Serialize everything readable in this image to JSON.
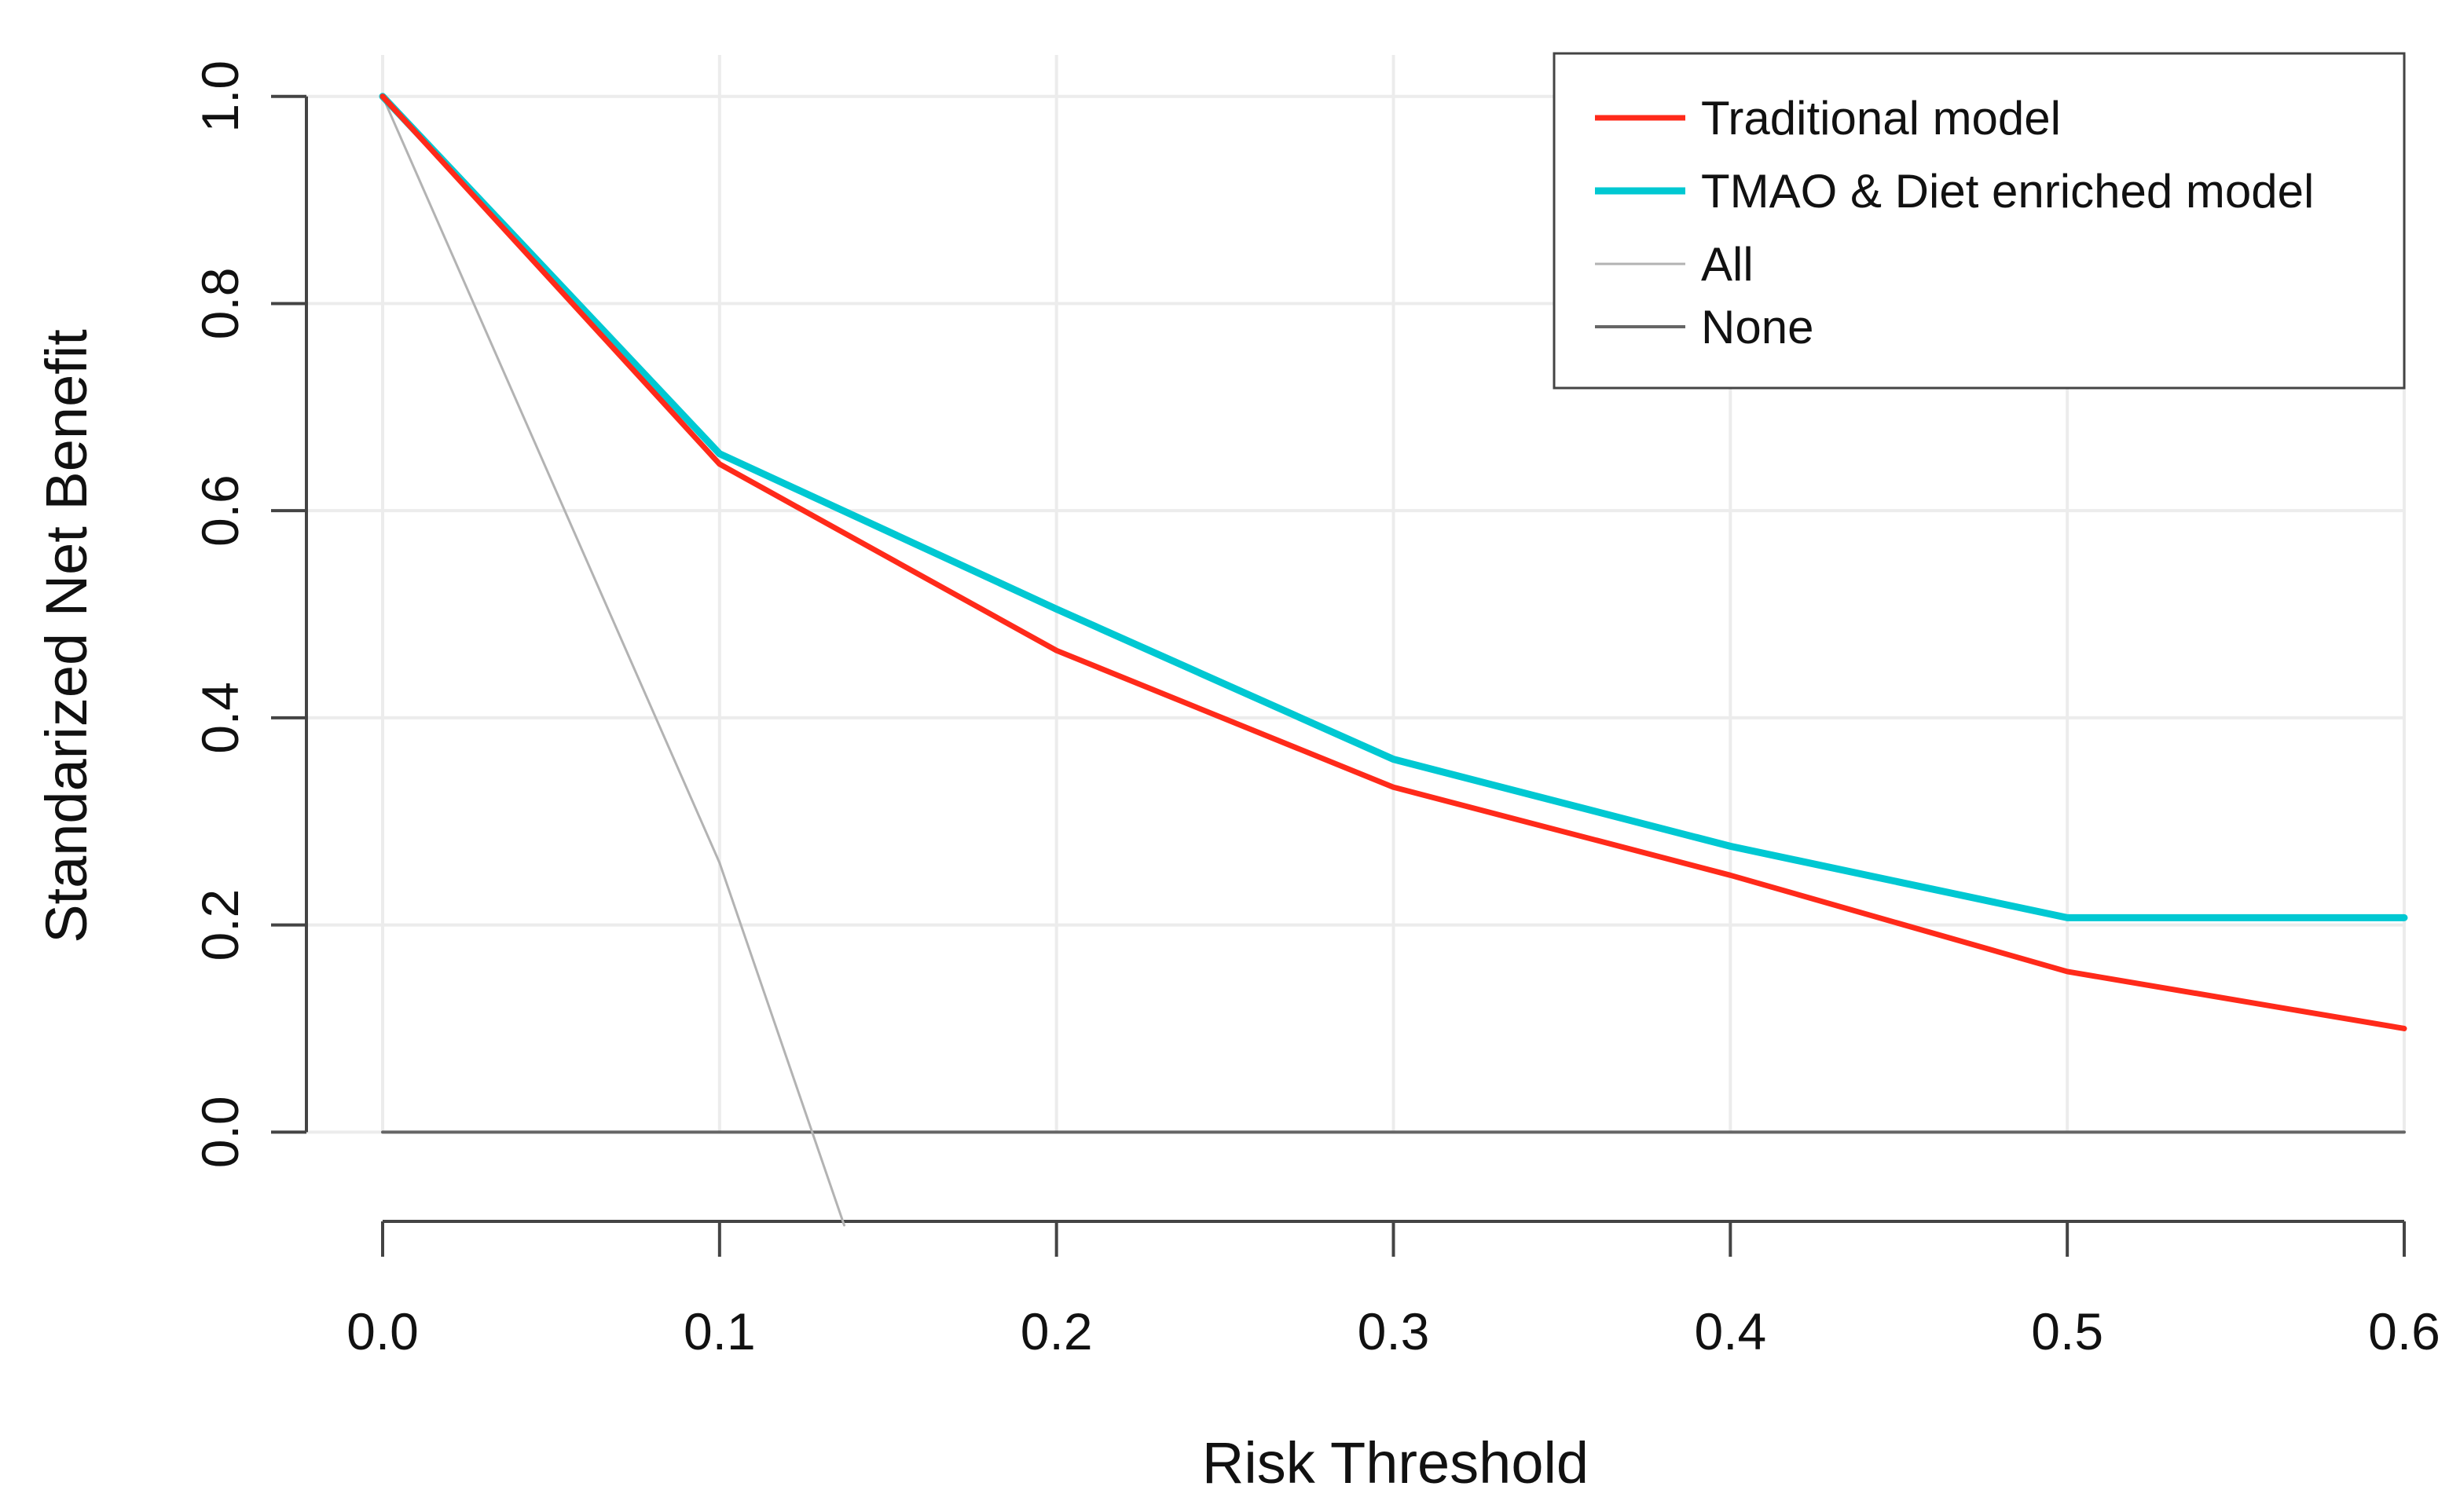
{
  "chart_data": {
    "type": "line",
    "title": "",
    "xlabel": "Risk Threshold",
    "ylabel": "Standarized Net Benefit",
    "xlim": [
      0,
      0.6
    ],
    "ylim": [
      -0.09,
      1.04
    ],
    "xticks": [
      "0.0",
      "0.1",
      "0.2",
      "0.3",
      "0.4",
      "0.5",
      "0.6"
    ],
    "yticks": [
      "0.0",
      "0.2",
      "0.4",
      "0.6",
      "0.8",
      "1.0"
    ],
    "grid": true,
    "legend_position": "top-right",
    "series": [
      {
        "name": "Traditional model",
        "color": "#ff2a1a",
        "x": [
          0,
          0.1,
          0.2,
          0.3,
          0.4,
          0.5,
          0.6
        ],
        "values": [
          1.0,
          0.645,
          0.465,
          0.333,
          0.248,
          0.155,
          0.1
        ]
      },
      {
        "name": "TMAO & Diet enriched model",
        "color": "#00c8d2",
        "x": [
          0,
          0.1,
          0.2,
          0.3,
          0.4,
          0.5,
          0.6
        ],
        "values": [
          1.0,
          0.655,
          0.505,
          0.36,
          0.276,
          0.207,
          0.207
        ]
      },
      {
        "name": "All",
        "color": "#b3b3b3",
        "x": [
          0,
          0.1,
          0.137
        ],
        "values": [
          1.0,
          0.26,
          -0.09
        ]
      },
      {
        "name": "None",
        "color": "#666666",
        "x": [
          0,
          0.6
        ],
        "values": [
          0,
          0
        ]
      }
    ]
  }
}
